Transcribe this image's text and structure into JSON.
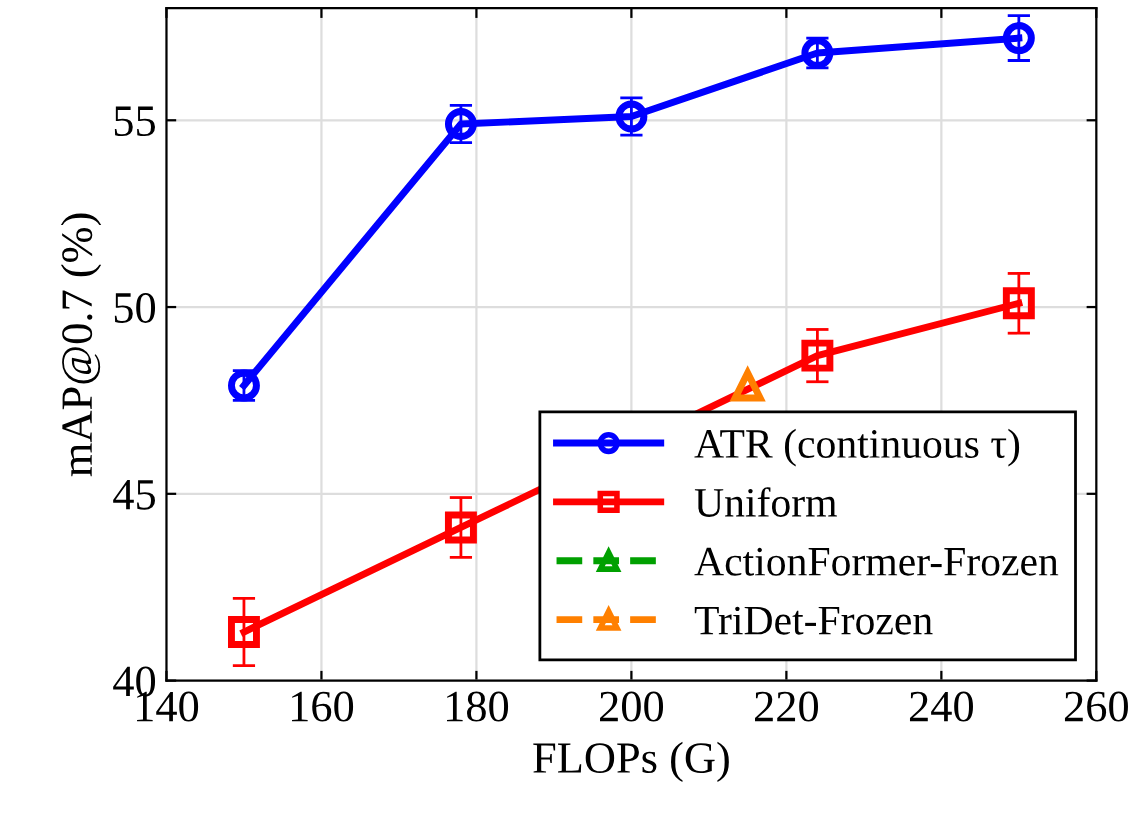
{
  "chart_data": {
    "type": "line",
    "xlabel": "FLOPs (G)",
    "ylabel": "mAP@0.7 (%)",
    "xlim": [
      140,
      260
    ],
    "ylim": [
      40,
      58
    ],
    "xticks": [
      140,
      160,
      180,
      200,
      220,
      240,
      260
    ],
    "yticks": [
      40,
      45,
      50,
      55
    ],
    "grid": true,
    "legend": "bottom right",
    "series": [
      {
        "name": "ATR (continuous τ)",
        "color": "#0000ff",
        "marker": "circle",
        "line_style": "solid",
        "x": [
          150,
          178,
          200,
          224,
          250
        ],
        "values": [
          47.9,
          54.9,
          55.1,
          56.8,
          57.2
        ],
        "errors": [
          0.4,
          0.5,
          0.5,
          0.4,
          0.6
        ]
      },
      {
        "name": "Uniform",
        "color": "#ff0000",
        "marker": "square",
        "line_style": "solid",
        "x": [
          150,
          178,
          224,
          250
        ],
        "values": [
          41.3,
          44.1,
          48.7,
          50.1
        ],
        "errors": [
          0.9,
          0.8,
          0.7,
          0.8
        ]
      },
      {
        "name": "ActionFormer-Frozen",
        "color": "#00a000",
        "marker": "triangle",
        "line_style": "dashed"
      },
      {
        "name": "TriDet-Frozen",
        "color": "#ff8000",
        "marker": "triangle",
        "line_style": "dashed",
        "x": [
          215
        ],
        "values": [
          47.9
        ]
      }
    ]
  }
}
